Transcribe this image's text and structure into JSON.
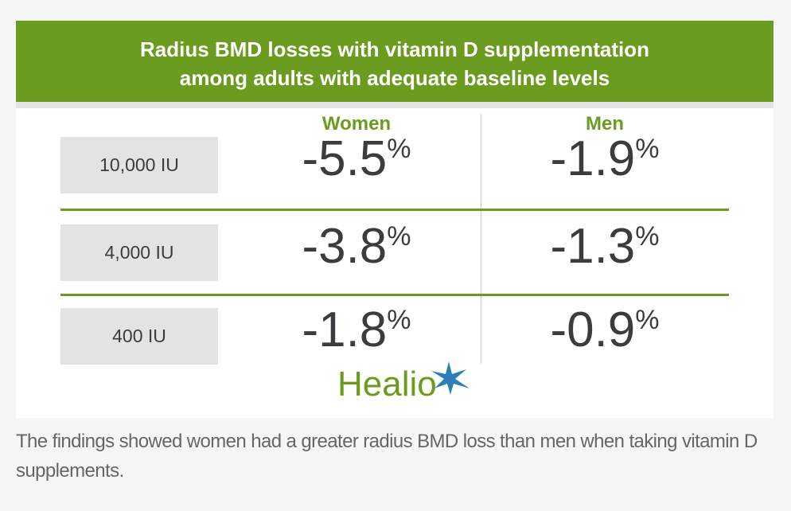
{
  "header": {
    "title_lines": [
      "Radius BMD losses with vitamin D supplementation",
      "among adults with adequate baseline levels"
    ]
  },
  "table": {
    "columns": [
      "Women",
      "Men"
    ],
    "rows": [
      {
        "dose": "10,000 IU",
        "cells": [
          {
            "number": "-5.5",
            "unit": "%"
          },
          {
            "number": "-1.9",
            "unit": "%"
          }
        ]
      },
      {
        "dose": "4,000 IU",
        "cells": [
          {
            "number": "-3.8",
            "unit": "%"
          },
          {
            "number": "-1.3",
            "unit": "%"
          }
        ]
      },
      {
        "dose": "400 IU",
        "cells": [
          {
            "number": "-1.8",
            "unit": "%"
          },
          {
            "number": "-0.9",
            "unit": "%"
          }
        ]
      }
    ]
  },
  "logo": "Healio",
  "caption": "The findings showed women had a greater radius BMD loss than men when taking vitamin D supplements."
}
